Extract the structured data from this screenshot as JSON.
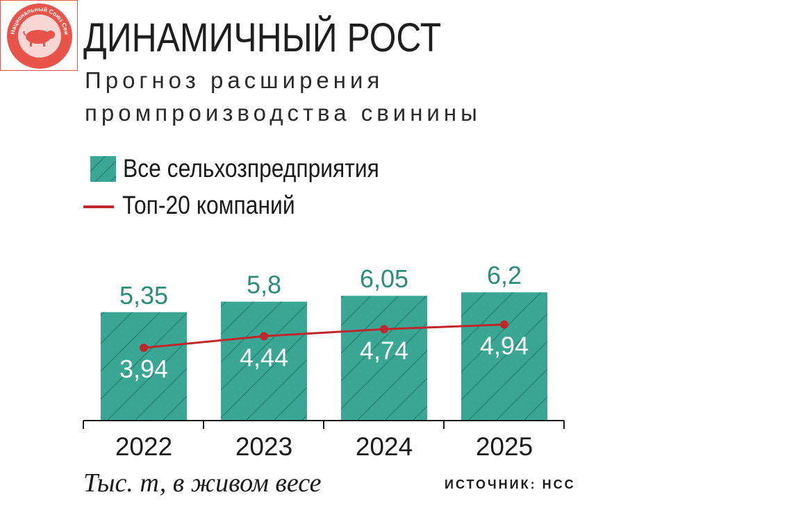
{
  "logo": {
    "text": "Национальный Союз Свиноводов",
    "icon": "pig-icon",
    "color": "#e8534a"
  },
  "title": "ДИНАМИЧНЫЙ РОСТ",
  "subtitle": "Прогноз расширения промпроизводства свинины",
  "legend": {
    "bars": "Все сельхозпредприятия",
    "line": "Топ-20 компаний"
  },
  "footnote": "Тыс. т, в живом весе",
  "source": "ИСТОЧНИК: НСС",
  "colors": {
    "bar": "#3aa795",
    "bar_label": "#2b8c7c",
    "line": "#c0272d"
  },
  "chart_data": {
    "type": "bar",
    "title": "ДИНАМИЧНЫЙ РОСТ",
    "subtitle": "Прогноз расширения промпроизводства свинины",
    "categories": [
      "2022",
      "2023",
      "2024",
      "2025"
    ],
    "series": [
      {
        "name": "Все сельхозпредприятия",
        "type": "bar",
        "values": [
          5.35,
          5.8,
          6.05,
          6.2
        ],
        "labels": [
          "5,35",
          "5,8",
          "6,05",
          "6,2"
        ]
      },
      {
        "name": "Топ-20 компаний",
        "type": "line",
        "values": [
          3.94,
          4.44,
          4.74,
          4.94
        ],
        "labels": [
          "3,94",
          "4,44",
          "4,74",
          "4,94"
        ]
      }
    ],
    "ylabel": "Тыс. т, в живом весе",
    "grid": false,
    "legend_position": "top-left"
  }
}
